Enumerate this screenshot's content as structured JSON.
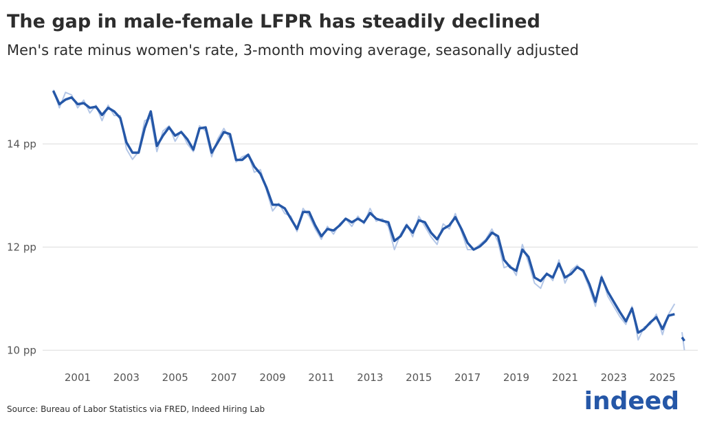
{
  "chart_data": {
    "type": "line",
    "title": "The gap in male-female LFPR has steadily declined",
    "subtitle": "Men's rate minus women's rate, 3-month moving average, seasonally adjusted",
    "source": "Source: Bureau of Labor Statistics via FRED, Indeed Hiring Lab",
    "logo": "indeed",
    "x": [
      2000,
      2000.25,
      2000.5,
      2000.75,
      2001,
      2001.25,
      2001.5,
      2001.75,
      2002,
      2002.25,
      2002.5,
      2002.75,
      2003,
      2003.25,
      2003.5,
      2003.75,
      2004,
      2004.25,
      2004.5,
      2004.75,
      2005,
      2005.25,
      2005.5,
      2005.75,
      2006,
      2006.25,
      2006.5,
      2006.75,
      2007,
      2007.25,
      2007.5,
      2007.75,
      2008,
      2008.25,
      2008.5,
      2008.75,
      2009,
      2009.25,
      2009.5,
      2009.75,
      2010,
      2010.25,
      2010.5,
      2010.75,
      2011,
      2011.25,
      2011.5,
      2011.75,
      2012,
      2012.25,
      2012.5,
      2012.75,
      2013,
      2013.25,
      2013.5,
      2013.75,
      2014,
      2014.25,
      2014.5,
      2014.75,
      2015,
      2015.25,
      2015.5,
      2015.75,
      2016,
      2016.25,
      2016.5,
      2016.75,
      2017,
      2017.25,
      2017.5,
      2017.75,
      2018,
      2018.25,
      2018.5,
      2018.75,
      2019,
      2019.25,
      2019.5,
      2019.75,
      2020,
      2020.25,
      2020.5,
      2020.75,
      2021,
      2021.25,
      2021.5,
      2021.75,
      2022,
      2022.25,
      2022.5,
      2022.75,
      2023,
      2023.25,
      2023.5,
      2023.75,
      2024,
      2024.25,
      2024.5,
      2024.75,
      2025,
      2025.25,
      2025.5,
      2025.65,
      2025.8,
      2025.9
    ],
    "series": [
      {
        "color": "#b4c7e7",
        "width": 2,
        "values": [
          15.05,
          14.7,
          15.0,
          14.95,
          14.7,
          14.85,
          14.6,
          14.75,
          14.45,
          14.75,
          14.55,
          14.55,
          13.9,
          13.7,
          13.85,
          14.45,
          14.5,
          13.85,
          14.25,
          14.35,
          14.05,
          14.25,
          14.0,
          13.85,
          14.35,
          14.25,
          13.75,
          14.1,
          14.3,
          14.1,
          13.65,
          13.75,
          13.8,
          13.45,
          13.5,
          13.1,
          12.7,
          12.85,
          12.65,
          12.6,
          12.3,
          12.75,
          12.6,
          12.35,
          12.15,
          12.4,
          12.25,
          12.45,
          12.55,
          12.4,
          12.6,
          12.45,
          12.75,
          12.5,
          12.55,
          12.4,
          11.95,
          12.25,
          12.45,
          12.2,
          12.6,
          12.4,
          12.2,
          12.05,
          12.45,
          12.35,
          12.65,
          12.3,
          11.95,
          11.95,
          12.05,
          12.15,
          12.35,
          12.1,
          11.6,
          11.65,
          11.45,
          12.05,
          11.7,
          11.3,
          11.2,
          11.5,
          11.35,
          11.75,
          11.3,
          11.55,
          11.65,
          11.5,
          11.2,
          10.85,
          11.45,
          11.05,
          10.85,
          10.65,
          10.5,
          10.85,
          10.2,
          10.45,
          10.5,
          10.7,
          10.3,
          10.7,
          10.9,
          null,
          10.35,
          10.0
        ]
      },
      {
        "color": "#2557a7",
        "width": 3.5,
        "values": [
          15.03,
          14.77,
          14.86,
          14.9,
          14.77,
          14.79,
          14.7,
          14.72,
          14.56,
          14.7,
          14.63,
          14.5,
          14.03,
          13.83,
          13.83,
          14.3,
          14.63,
          13.96,
          14.16,
          14.32,
          14.16,
          14.23,
          14.09,
          13.89,
          14.3,
          14.32,
          13.83,
          14.03,
          14.23,
          14.19,
          13.69,
          13.69,
          13.79,
          13.56,
          13.42,
          13.15,
          12.82,
          12.82,
          12.75,
          12.55,
          12.35,
          12.68,
          12.68,
          12.42,
          12.21,
          12.35,
          12.32,
          12.42,
          12.55,
          12.48,
          12.55,
          12.48,
          12.66,
          12.55,
          12.51,
          12.48,
          12.12,
          12.21,
          12.42,
          12.28,
          12.52,
          12.48,
          12.28,
          12.15,
          12.35,
          12.42,
          12.58,
          12.35,
          12.08,
          11.95,
          12.01,
          12.12,
          12.28,
          12.21,
          11.75,
          11.61,
          11.54,
          11.95,
          11.81,
          11.41,
          11.34,
          11.48,
          11.41,
          11.68,
          11.41,
          11.48,
          11.61,
          11.54,
          11.28,
          10.94,
          11.41,
          11.14,
          10.94,
          10.74,
          10.56,
          10.81,
          10.34,
          10.41,
          10.54,
          10.64,
          10.41,
          10.67,
          10.7,
          null,
          10.25,
          10.18
        ]
      }
    ],
    "xlim": [
      1998.8,
      2026.45
    ],
    "xticks": [
      2001,
      2003,
      2005,
      2007,
      2009,
      2011,
      2013,
      2015,
      2017,
      2019,
      2021,
      2023,
      2025
    ],
    "ylim": [
      9.87,
      15.35
    ],
    "yticks": [
      {
        "value": 10,
        "label": "10 pp"
      },
      {
        "value": 12,
        "label": "12 pp"
      },
      {
        "value": 14,
        "label": "14 pp"
      }
    ],
    "grid": true
  }
}
